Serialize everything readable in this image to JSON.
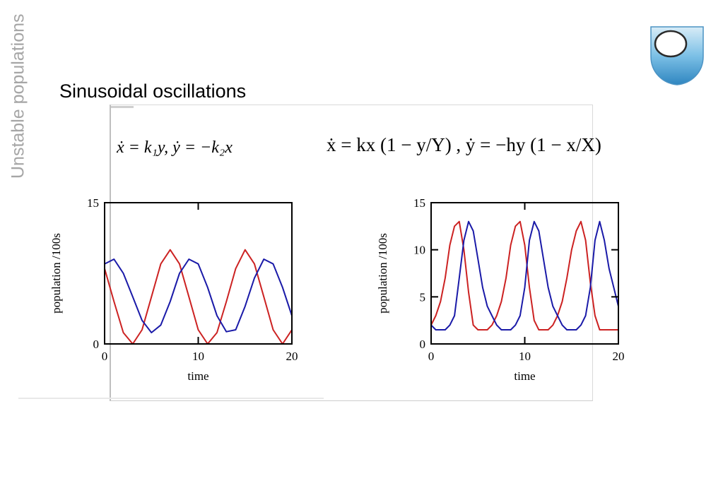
{
  "slide": {
    "side_title": "Unstable populations",
    "title": "Sinusoidal oscillations",
    "equation_left": "ẋ = k₁y,   ẏ = −k₂x",
    "equation_right": "ẋ = kx (1 − y/Y) ,   ẏ = −hy (1 − x/X)"
  },
  "colors": {
    "red": "#cc2222",
    "blue": "#1a1aa8",
    "side_title": "#a6a6a6",
    "logo": "#5aa9d6"
  },
  "icons": {
    "logo": "open-university-shield-icon"
  },
  "chart_data": [
    {
      "type": "line",
      "xlabel": "time",
      "ylabel": "population /100s",
      "xlim": [
        0,
        20
      ],
      "ylim": [
        0,
        15
      ],
      "xticks": [
        0,
        10,
        20
      ],
      "yticks": [
        0,
        15
      ],
      "grid": false,
      "series": [
        {
          "color": "red",
          "x": [
            0,
            1,
            2,
            3,
            4,
            5,
            6,
            7,
            8,
            9,
            10,
            11,
            12,
            13,
            14,
            15,
            16,
            17,
            18,
            19,
            20
          ],
          "y": [
            8,
            4.5,
            1.2,
            0,
            1.5,
            5,
            8.5,
            10,
            8.5,
            5,
            1.5,
            0,
            1.2,
            4.5,
            8,
            10,
            8.5,
            5,
            1.5,
            0,
            1.5
          ]
        },
        {
          "color": "blue",
          "x": [
            0,
            1,
            2,
            3,
            4,
            5,
            6,
            7,
            8,
            9,
            10,
            11,
            12,
            13,
            14,
            15,
            16,
            17,
            18,
            19,
            20
          ],
          "y": [
            8.5,
            9,
            7.5,
            5,
            2.5,
            1.2,
            2,
            4.5,
            7.5,
            9,
            8.5,
            6,
            3,
            1.3,
            1.5,
            4,
            7,
            9,
            8.5,
            6,
            3
          ]
        }
      ]
    },
    {
      "type": "line",
      "xlabel": "time",
      "ylabel": "population /100s",
      "xlim": [
        0,
        20
      ],
      "ylim": [
        0,
        15
      ],
      "xticks": [
        0,
        10,
        20
      ],
      "yticks": [
        0,
        5,
        10,
        15
      ],
      "grid": false,
      "series": [
        {
          "color": "red",
          "x": [
            0,
            0.5,
            1,
            1.5,
            2,
            2.5,
            3,
            3.5,
            4,
            4.5,
            5,
            5.5,
            6,
            6.5,
            7,
            7.5,
            8,
            8.5,
            9,
            9.5,
            10,
            10.5,
            11,
            11.5,
            12,
            12.5,
            13,
            13.5,
            14,
            14.5,
            15,
            15.5,
            16,
            16.5,
            17,
            17.5,
            18,
            18.5,
            19,
            19.5,
            20
          ],
          "y": [
            2,
            3,
            4.5,
            7,
            10.5,
            12.5,
            13,
            10,
            5.5,
            2,
            1.5,
            1.5,
            1.5,
            2,
            3,
            4.5,
            7,
            10.5,
            12.5,
            13,
            10.5,
            6,
            2.5,
            1.5,
            1.5,
            1.5,
            2,
            3,
            4.5,
            7,
            10,
            12,
            13,
            11,
            6.5,
            3,
            1.5,
            1.5,
            1.5,
            1.5,
            1.5
          ]
        },
        {
          "color": "blue",
          "x": [
            0,
            0.5,
            1,
            1.5,
            2,
            2.5,
            3,
            3.5,
            4,
            4.5,
            5,
            5.5,
            6,
            6.5,
            7,
            7.5,
            8,
            8.5,
            9,
            9.5,
            10,
            10.5,
            11,
            11.5,
            12,
            12.5,
            13,
            13.5,
            14,
            14.5,
            15,
            15.5,
            16,
            16.5,
            17,
            17.5,
            18,
            18.5,
            19,
            19.5,
            20
          ],
          "y": [
            2,
            1.5,
            1.5,
            1.5,
            2,
            3,
            7,
            11,
            13,
            12,
            9,
            6,
            4,
            3,
            2,
            1.5,
            1.5,
            1.5,
            2,
            3,
            6,
            11,
            13,
            12,
            9,
            6,
            4,
            3,
            2,
            1.5,
            1.5,
            1.5,
            2,
            3,
            6,
            11,
            13,
            11,
            8,
            6,
            4
          ]
        }
      ]
    }
  ]
}
